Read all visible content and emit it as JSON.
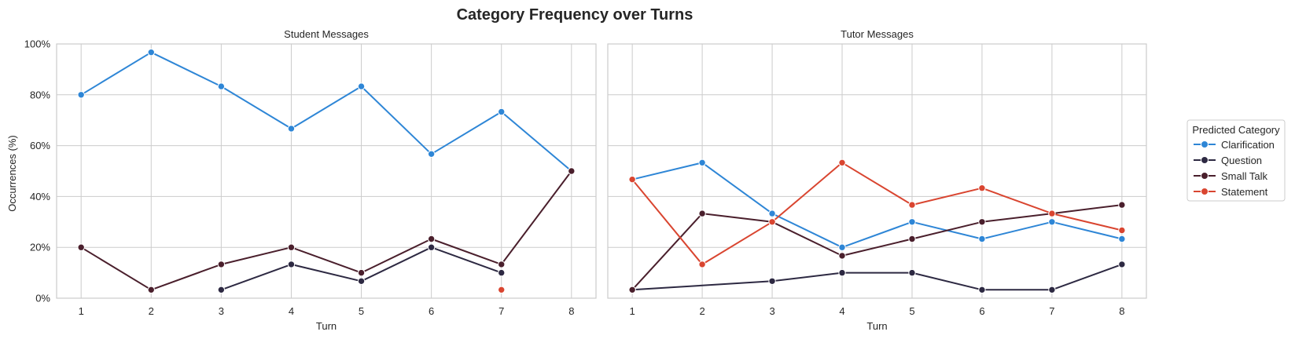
{
  "figure": {
    "title": "Category Frequency over Turns",
    "ylabel": "Occurrences (%)",
    "legend_title": "Predicted Category",
    "legend_position": "center-right"
  },
  "chart_data": [
    {
      "type": "line",
      "title": "Student Messages",
      "xlabel": "Turn",
      "ylabel": "Occurrences (%)",
      "x": [
        1,
        2,
        3,
        4,
        5,
        6,
        7,
        8
      ],
      "xlim": [
        0.65,
        8.35
      ],
      "ylim": [
        0,
        100
      ],
      "yticks": [
        "0%",
        "20%",
        "40%",
        "60%",
        "80%",
        "100%"
      ],
      "grid": true,
      "series": [
        {
          "name": "Clarification",
          "color": "#2e86d6",
          "points": [
            [
              1,
              80
            ],
            [
              2,
              96.7
            ],
            [
              3,
              83.3
            ],
            [
              4,
              66.7
            ],
            [
              5,
              83.3
            ],
            [
              6,
              56.7
            ],
            [
              7,
              73.3
            ],
            [
              8,
              50
            ]
          ]
        },
        {
          "name": "Question",
          "color": "#2d2942",
          "points": [
            [
              3,
              3.3
            ],
            [
              4,
              13.3
            ],
            [
              5,
              6.7
            ],
            [
              6,
              20
            ],
            [
              7,
              10
            ]
          ]
        },
        {
          "name": "Small Talk",
          "color": "#4a1f2c",
          "points": [
            [
              1,
              20
            ],
            [
              2,
              3.3
            ],
            [
              3,
              13.3
            ],
            [
              4,
              20
            ],
            [
              5,
              10
            ],
            [
              6,
              23.3
            ],
            [
              7,
              13.3
            ],
            [
              8,
              50
            ]
          ]
        },
        {
          "name": "Statement",
          "color": "#d94530",
          "points": [
            [
              7,
              3.3
            ]
          ]
        }
      ]
    },
    {
      "type": "line",
      "title": "Tutor Messages",
      "xlabel": "Turn",
      "ylabel": "",
      "x": [
        1,
        2,
        3,
        4,
        5,
        6,
        7,
        8
      ],
      "xlim": [
        0.65,
        8.35
      ],
      "ylim": [
        0,
        100
      ],
      "grid": true,
      "series": [
        {
          "name": "Clarification",
          "color": "#2e86d6",
          "points": [
            [
              1,
              46.7
            ],
            [
              2,
              53.3
            ],
            [
              3,
              33.3
            ],
            [
              4,
              20
            ],
            [
              5,
              30
            ],
            [
              6,
              23.3
            ],
            [
              7,
              30
            ],
            [
              8,
              23.3
            ]
          ]
        },
        {
          "name": "Question",
          "color": "#2d2942",
          "points": [
            [
              1,
              3.3
            ],
            [
              3,
              6.7
            ],
            [
              4,
              10
            ],
            [
              5,
              10
            ],
            [
              6,
              3.3
            ],
            [
              7,
              3.3
            ],
            [
              8,
              13.3
            ]
          ]
        },
        {
          "name": "Small Talk",
          "color": "#4a1f2c",
          "points": [
            [
              1,
              3.3
            ],
            [
              2,
              33.3
            ],
            [
              3,
              30
            ],
            [
              4,
              16.7
            ],
            [
              5,
              23.3
            ],
            [
              6,
              30
            ],
            [
              7,
              33.3
            ],
            [
              8,
              36.7
            ]
          ]
        },
        {
          "name": "Statement",
          "color": "#d94530",
          "points": [
            [
              1,
              46.7
            ],
            [
              2,
              13.3
            ],
            [
              3,
              30
            ],
            [
              4,
              53.3
            ],
            [
              5,
              36.7
            ],
            [
              6,
              43.3
            ],
            [
              7,
              33.3
            ],
            [
              8,
              26.7
            ]
          ]
        }
      ]
    }
  ]
}
